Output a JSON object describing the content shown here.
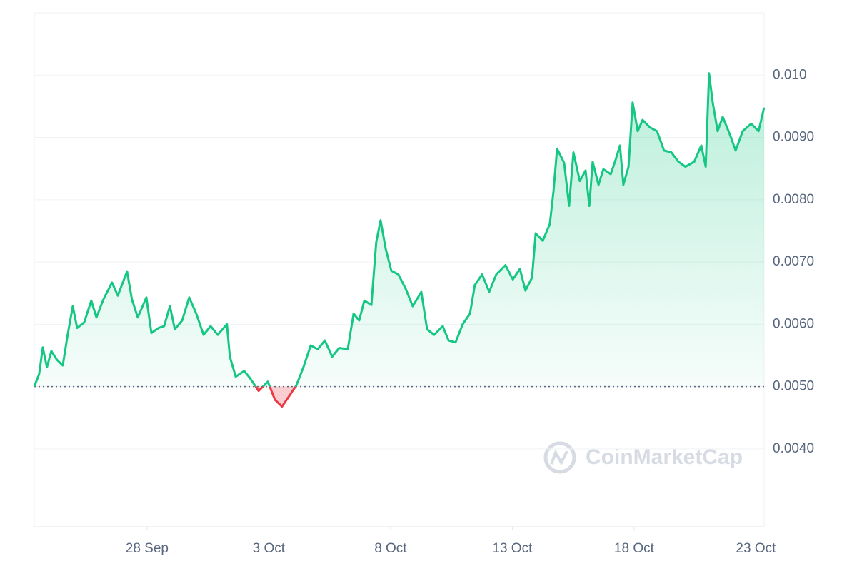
{
  "chart_data": {
    "type": "line",
    "x": [
      -4.63,
      -4.43,
      -4.28,
      -4.11,
      -3.93,
      -3.7,
      -3.46,
      -3.26,
      -3.05,
      -2.87,
      -2.58,
      -2.29,
      -2.08,
      -1.79,
      -1.44,
      -1.2,
      -0.82,
      -0.62,
      -0.38,
      -0.03,
      0.18,
      0.47,
      0.7,
      0.94,
      1.14,
      1.44,
      1.73,
      2.02,
      2.32,
      2.61,
      2.9,
      3.28,
      3.4,
      3.64,
      3.99,
      4.22,
      4.58,
      4.96,
      5.25,
      5.54,
      5.84,
      6.13,
      6.42,
      6.72,
      7.01,
      7.3,
      7.6,
      7.89,
      8.24,
      8.48,
      8.71,
      8.92,
      9.21,
      9.41,
      9.59,
      9.8,
      10.03,
      10.32,
      10.62,
      10.91,
      11.26,
      11.5,
      11.79,
      12.14,
      12.38,
      12.67,
      12.96,
      13.26,
      13.46,
      13.76,
      14.05,
      14.34,
      14.72,
      15.02,
      15.31,
      15.54,
      15.81,
      15.96,
      16.25,
      16.54,
      16.69,
      16.84,
      17.13,
      17.33,
      17.51,
      17.77,
      18.01,
      18.16,
      18.3,
      18.54,
      18.74,
      19.04,
      19.24,
      19.42,
      19.56,
      19.77,
      19.94,
      20.15,
      20.35,
      20.65,
      20.94,
      21.23,
      21.53,
      21.82,
      22.11,
      22.47,
      22.76,
      22.94,
      23.08,
      23.23,
      23.43,
      23.64,
      23.93,
      24.17,
      24.46,
      24.81,
      25.11,
      25.34
    ],
    "values": [
      0.005,
      0.0052,
      0.00563,
      0.00531,
      0.00557,
      0.00543,
      0.00534,
      0.00583,
      0.00629,
      0.00594,
      0.00603,
      0.00638,
      0.00611,
      0.0064,
      0.00667,
      0.00646,
      0.00685,
      0.0064,
      0.00611,
      0.00643,
      0.00586,
      0.00594,
      0.00597,
      0.00629,
      0.00592,
      0.00606,
      0.00643,
      0.00617,
      0.00583,
      0.00597,
      0.00583,
      0.006,
      0.00548,
      0.00516,
      0.00525,
      0.00514,
      0.00493,
      0.00508,
      0.00479,
      0.00468,
      0.00485,
      0.00502,
      0.00531,
      0.00566,
      0.0056,
      0.00574,
      0.00548,
      0.00562,
      0.0056,
      0.00617,
      0.00606,
      0.00638,
      0.00631,
      0.00732,
      0.00767,
      0.00721,
      0.00686,
      0.0068,
      0.00657,
      0.00629,
      0.00652,
      0.00592,
      0.00583,
      0.00597,
      0.00574,
      0.00571,
      0.006,
      0.00617,
      0.00663,
      0.0068,
      0.00652,
      0.0068,
      0.00695,
      0.00672,
      0.00689,
      0.00654,
      0.00675,
      0.00746,
      0.00734,
      0.00761,
      0.00813,
      0.00882,
      0.00859,
      0.0079,
      0.00876,
      0.0083,
      0.00847,
      0.0079,
      0.00861,
      0.00824,
      0.00849,
      0.00841,
      0.00864,
      0.00887,
      0.00824,
      0.00853,
      0.00956,
      0.0091,
      0.00928,
      0.00916,
      0.0091,
      0.00879,
      0.00876,
      0.00861,
      0.00853,
      0.00861,
      0.00887,
      0.00853,
      0.01003,
      0.00956,
      0.0091,
      0.00933,
      0.00905,
      0.00879,
      0.0091,
      0.00922,
      0.0091,
      0.00948
    ],
    "baseline": 0.005,
    "color_up": "#16c784",
    "color_down": "#ea3943",
    "xlim": [
      -4.63,
      25.34
    ],
    "xticks": [
      {
        "value": 0,
        "label": "28 Sep"
      },
      {
        "value": 5,
        "label": "3 Oct"
      },
      {
        "value": 10,
        "label": "8 Oct"
      },
      {
        "value": 15,
        "label": "13 Oct"
      },
      {
        "value": 20,
        "label": "18 Oct"
      },
      {
        "value": 25,
        "label": "23 Oct"
      }
    ],
    "ylim": [
      0.00275,
      0.011
    ],
    "yticks": [
      {
        "value": 0.004,
        "label": "0.0040"
      },
      {
        "value": 0.005,
        "label": "0.0050"
      },
      {
        "value": 0.006,
        "label": "0.0060"
      },
      {
        "value": 0.007,
        "label": "0.0070"
      },
      {
        "value": 0.008,
        "label": "0.0080"
      },
      {
        "value": 0.009,
        "label": "0.0090"
      },
      {
        "value": 0.01,
        "label": "0.010"
      }
    ],
    "grid": true,
    "watermark": "CoinMarketCap"
  }
}
